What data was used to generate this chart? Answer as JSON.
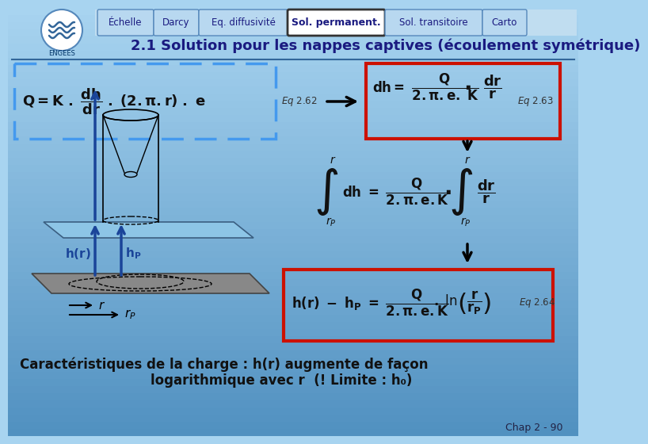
{
  "bg_top": "#a8d4f0",
  "bg_bottom": "#6aaad4",
  "title": "2.1 Solution pour les nappes captives (écoulement symétrique)",
  "title_color": "#1a1a80",
  "tab_labels": [
    "Échelle",
    "Darcy",
    "Eq. diffusivité",
    "Sol. permanent.",
    "Sol. transitoire",
    "Carto"
  ],
  "tab_active": 3,
  "tab_inactive_bg": "#b8d8f0",
  "tab_active_bg": "#ffffff",
  "tab_text_color": "#1a1a80",
  "tab_border_color": "#5588bb",
  "footer": "Chap 2 - 90",
  "dashed_box_color": "#4499ee",
  "red_box_color": "#cc1100",
  "bottom_text1": "Caractéristiques de la charge : h(r) augmente de façon",
  "bottom_text2": "logarithmique avec r  (! Limite : h₀)",
  "arrow_color": "#1a4499",
  "formula_color": "#111111",
  "label_color": "#333333"
}
